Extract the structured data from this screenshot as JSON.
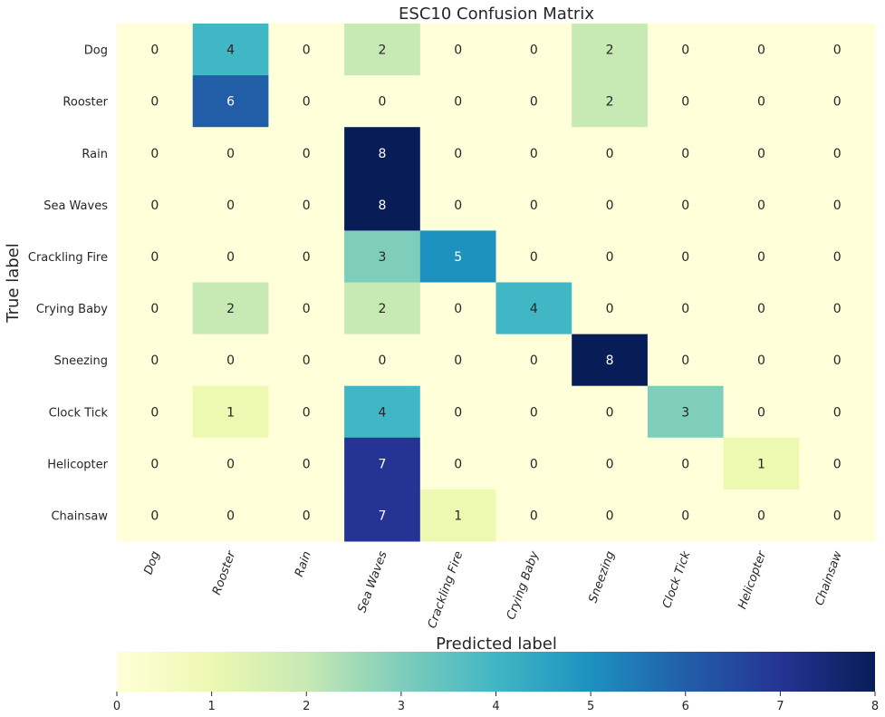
{
  "chart_data": {
    "type": "heatmap",
    "title": "ESC10 Confusion Matrix",
    "xlabel": "Predicted label",
    "ylabel": "True label",
    "row_labels": [
      "Dog",
      "Rooster",
      "Rain",
      "Sea Waves",
      "Crackling Fire",
      "Crying Baby",
      "Sneezing",
      "Clock Tick",
      "Helicopter",
      "Chainsaw"
    ],
    "col_labels": [
      "Dog",
      "Rooster",
      "Rain",
      "Sea Waves",
      "Crackling Fire",
      "Crying Baby",
      "Sneezing",
      "Clock Tick",
      "Helicopter",
      "Chainsaw"
    ],
    "values": [
      [
        0,
        4,
        0,
        2,
        0,
        0,
        2,
        0,
        0,
        0
      ],
      [
        0,
        6,
        0,
        0,
        0,
        0,
        2,
        0,
        0,
        0
      ],
      [
        0,
        0,
        0,
        8,
        0,
        0,
        0,
        0,
        0,
        0
      ],
      [
        0,
        0,
        0,
        8,
        0,
        0,
        0,
        0,
        0,
        0
      ],
      [
        0,
        0,
        0,
        3,
        5,
        0,
        0,
        0,
        0,
        0
      ],
      [
        0,
        2,
        0,
        2,
        0,
        4,
        0,
        0,
        0,
        0
      ],
      [
        0,
        0,
        0,
        0,
        0,
        0,
        8,
        0,
        0,
        0
      ],
      [
        0,
        1,
        0,
        4,
        0,
        0,
        0,
        3,
        0,
        0
      ],
      [
        0,
        0,
        0,
        7,
        0,
        0,
        0,
        0,
        1,
        0
      ],
      [
        0,
        0,
        0,
        7,
        1,
        0,
        0,
        0,
        0,
        0
      ]
    ],
    "colormap": "YlGnBu",
    "vmin": 0,
    "vmax": 8,
    "colorbar_ticks": [
      "0",
      "1",
      "2",
      "3",
      "4",
      "5",
      "6",
      "7",
      "8"
    ],
    "colorbar_orientation": "horizontal",
    "colorbar_position": "bottom",
    "grid": false
  }
}
